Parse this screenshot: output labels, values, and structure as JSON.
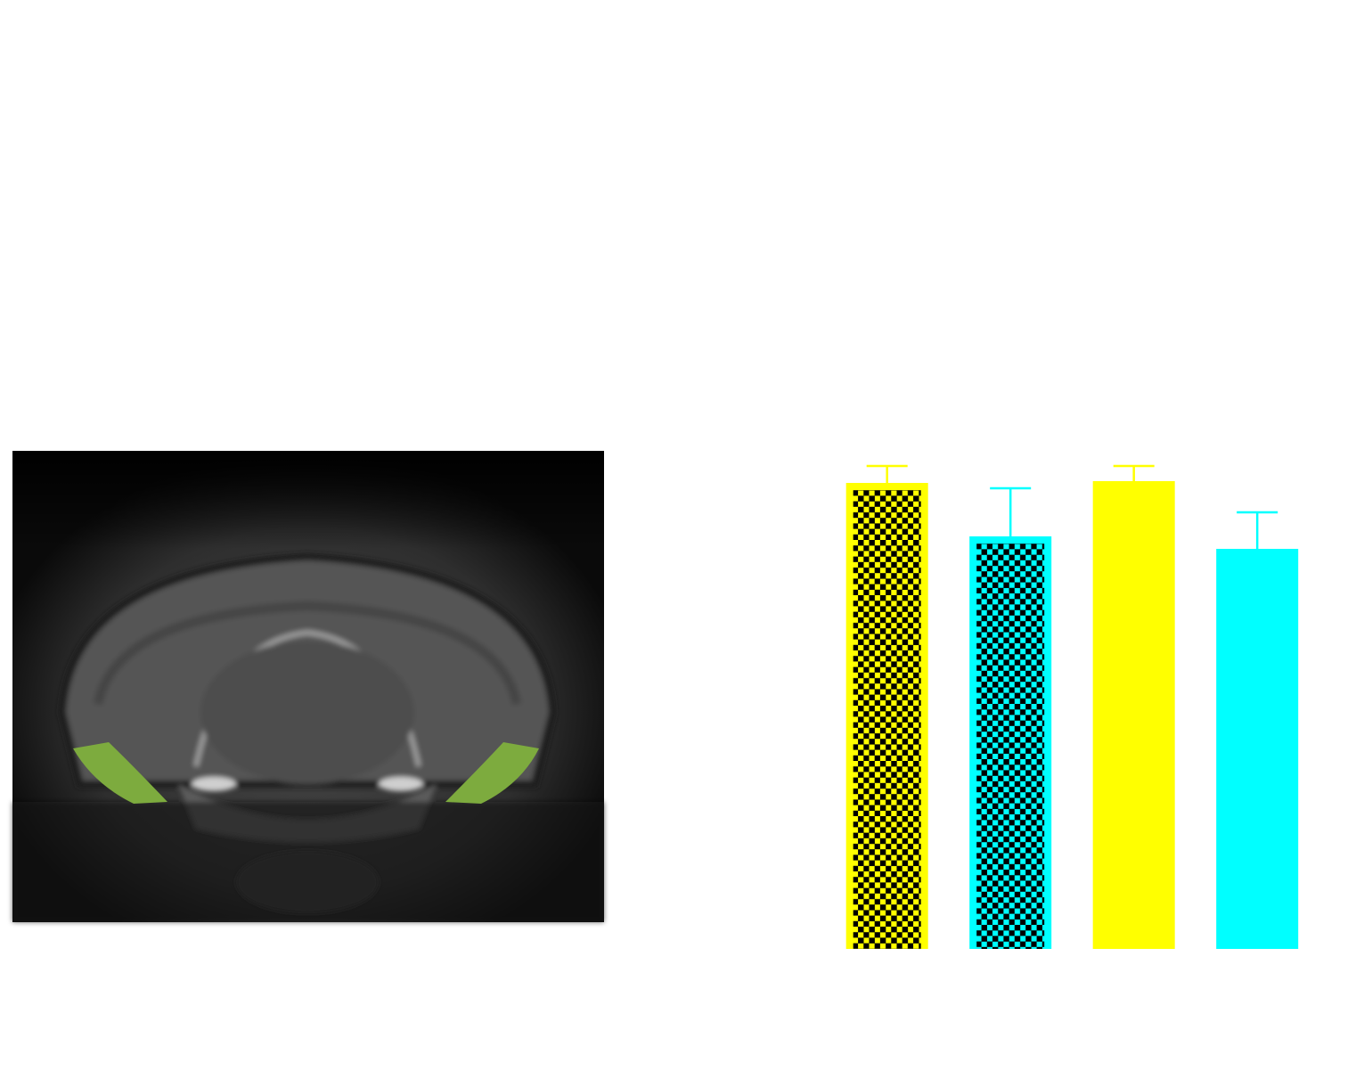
{
  "chart_data": {
    "type": "bar",
    "categories": [
      null,
      null,
      null,
      null
    ],
    "values": [
      523,
      463,
      525,
      449
    ],
    "errors": [
      19,
      54,
      17,
      41
    ],
    "colors": [
      "#ffff00",
      "#00ffff",
      "#ffff00",
      "#00ffff"
    ],
    "patterned": [
      true,
      true,
      false,
      false
    ],
    "ylim": [
      0,
      1065
    ]
  }
}
